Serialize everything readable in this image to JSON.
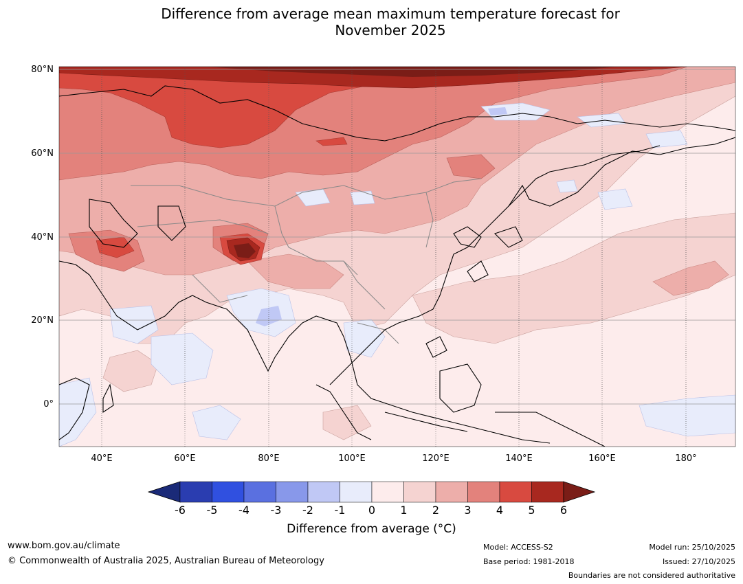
{
  "title": {
    "line1": "Difference from average mean maximum temperature forecast for",
    "line2": "November 2025"
  },
  "map": {
    "region": "Asia",
    "lat_labels": [
      "80°N",
      "60°N",
      "40°N",
      "20°N",
      "0°"
    ],
    "lon_labels": [
      "40°E",
      "60°E",
      "80°E",
      "100°E",
      "120°E",
      "140°E",
      "160°E",
      "180°"
    ]
  },
  "colorbar": {
    "ticks": [
      "-6",
      "-5",
      "-4",
      "-3",
      "-2",
      "-1",
      "0",
      "1",
      "2",
      "3",
      "4",
      "5",
      "6"
    ],
    "colors": [
      "#1a2a78",
      "#2a3db0",
      "#3050e0",
      "#5a70e0",
      "#8898ea",
      "#c0c8f5",
      "#e8ecfb",
      "#fdecec",
      "#f5d3d1",
      "#edaeaa",
      "#e3827c",
      "#d84a40",
      "#a8281f",
      "#7a1d17"
    ],
    "label": "Difference from average (°C)"
  },
  "footer": {
    "website": "www.bom.gov.au/climate",
    "copyright": "© Commonwealth of Australia 2025, Australian Bureau of Meteorology",
    "model": "Model: ACCESS-S2",
    "base_period": "Base period: 1981-2018",
    "model_run": "Model run: 25/10/2025",
    "issued": "Issued: 27/10/2025",
    "disclaimer": "Boundaries are not considered authoritative"
  }
}
